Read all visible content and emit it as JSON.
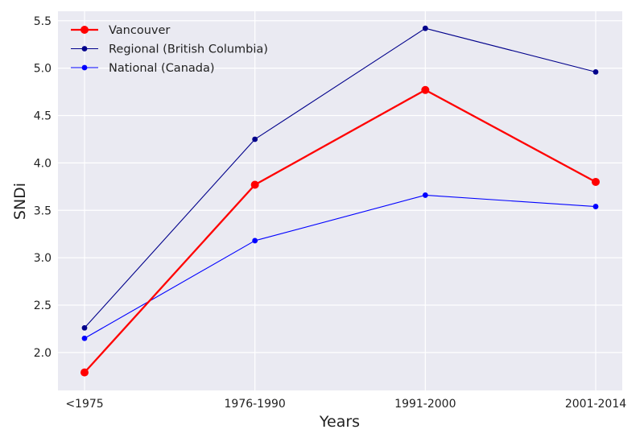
{
  "chart_data": {
    "type": "line",
    "title": "",
    "xlabel": "Years",
    "ylabel": "SNDi",
    "categories": [
      "<1975",
      "1976-1990",
      "1991-2000",
      "2001-2014"
    ],
    "ylim": [
      1.6,
      5.6
    ],
    "yticks": [
      2.0,
      2.5,
      3.0,
      3.5,
      4.0,
      4.5,
      5.0,
      5.5
    ],
    "ytick_labels": [
      "2.0",
      "2.5",
      "3.0",
      "3.5",
      "4.0",
      "4.5",
      "5.0",
      "5.5"
    ],
    "grid": true,
    "legend_position": "top-left",
    "background_color": "#eaeaf2",
    "grid_color": "#ffffff",
    "series": [
      {
        "name": "Vancouver",
        "values": [
          1.79,
          3.77,
          4.77,
          3.8
        ],
        "color": "#ff0000",
        "line_style": "thick",
        "marker": "circle-large"
      },
      {
        "name": "Regional (British Columbia)",
        "values": [
          2.26,
          4.25,
          5.42,
          4.96
        ],
        "color": "#00008b",
        "line_style": "thin",
        "marker": "circle-small"
      },
      {
        "name": "National (Canada)",
        "values": [
          2.15,
          3.18,
          3.66,
          3.54
        ],
        "color": "#0000ff",
        "line_style": "thin",
        "marker": "circle-small"
      }
    ]
  }
}
